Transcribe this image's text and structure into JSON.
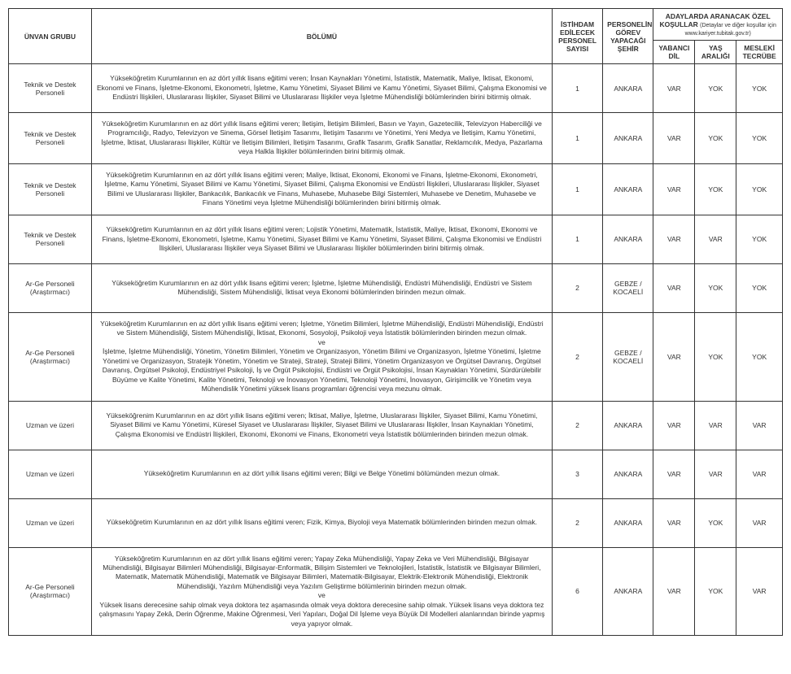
{
  "headers": {
    "unvan": "ÜNVAN GRUBU",
    "bolum": "BÖLÜMÜ",
    "sayi": "İSTİHDAM EDİLECEK PERSONEL SAYISI",
    "sehir": "PERSONELİN GÖREV YAPACAĞI ŞEHİR",
    "kosul_group": "ADAYLARDA ARANACAK ÖZEL KOŞULLAR",
    "kosul_note": "(Detaylar ve diğer koşullar için www.kariyer.tubitak.gov.tr)",
    "dil": "YABANCI DİL",
    "yas": "YAŞ ARALIĞI",
    "tecrube": "MESLEKİ TECRÜBE"
  },
  "rows": [
    {
      "unvan": "Teknik ve Destek Personeli",
      "bolum": "Yükseköğretim Kurumlarının en az dört yıllık lisans eğitimi veren; İnsan Kaynakları Yönetimi, İstatistik, Matematik, Maliye, İktisat, Ekonomi, Ekonomi ve Finans, İşletme-Ekonomi, Ekonometri, İşletme, Kamu Yönetimi, Siyaset Bilimi ve Kamu Yönetimi, Siyaset Bilimi, Çalışma Ekonomisi ve Endüstri İlişkileri, Uluslararası İlişkiler, Siyaset Bilimi ve Uluslararası İlişkiler veya İşletme Mühendisliği bölümlerinden birini bitirmiş olmak.",
      "sayi": "1",
      "sehir": "ANKARA",
      "dil": "VAR",
      "yas": "YOK",
      "tecrube": "YOK"
    },
    {
      "unvan": "Teknik ve Destek Personeli",
      "bolum": "Yükseköğretim Kurumlarının en az dört yıllık lisans eğitimi veren; İletişim, İletişim Bilimleri, Basın ve Yayın, Gazetecilik, Televizyon Haberciliği ve Programcılığı, Radyo, Televizyon ve Sinema, Görsel İletişim Tasarımı, İletişim Tasarımı ve Yönetimi, Yeni Medya ve İletişim, Kamu Yönetimi, İşletme, İktisat, Uluslararası İlişkiler, Kültür ve İletişim Bilimleri, İletişim Tasarımı, Grafik Tasarım, Grafik Sanatlar, Reklamcılık, Medya, Pazarlama veya Halkla İlişkiler bölümlerinden birini bitirmiş olmak.",
      "sayi": "1",
      "sehir": "ANKARA",
      "dil": "VAR",
      "yas": "YOK",
      "tecrube": "YOK"
    },
    {
      "unvan": "Teknik ve Destek Personeli",
      "bolum": "Yükseköğretim Kurumlarının en az dört yıllık lisans eğitimi veren; Maliye, İktisat, Ekonomi, Ekonomi ve Finans, İşletme-Ekonomi, Ekonometri, İşletme, Kamu Yönetimi, Siyaset Bilimi ve Kamu Yönetimi, Siyaset Bilimi, Çalışma Ekonomisi ve Endüstri İlişkileri, Uluslararası İlişkiler, Siyaset Bilimi ve Uluslararası İlişkiler, Bankacılık, Bankacılık ve Finans, Muhasebe, Muhasebe Bilgi Sistemleri, Muhasebe ve Denetim, Muhasebe ve Finans Yönetimi veya İşletme Mühendisliği bölümlerinden birini bitirmiş olmak.",
      "sayi": "1",
      "sehir": "ANKARA",
      "dil": "VAR",
      "yas": "YOK",
      "tecrube": "YOK"
    },
    {
      "unvan": "Teknik ve Destek Personeli",
      "bolum": "Yükseköğretim Kurumlarının en az dört yıllık lisans eğitimi veren; Lojistik Yönetimi, Matematik, İstatistik, Maliye, İktisat, Ekonomi, Ekonomi ve Finans, İşletme-Ekonomi, Ekonometri, İşletme, Kamu Yönetimi, Siyaset Bilimi ve Kamu Yönetimi, Siyaset Bilimi, Çalışma Ekonomisi ve Endüstri İlişkileri, Uluslararası İlişkiler veya Siyaset Bilimi ve Uluslararası İlişkiler bölümlerinden birini bitirmiş olmak.",
      "sayi": "1",
      "sehir": "ANKARA",
      "dil": "VAR",
      "yas": "VAR",
      "tecrube": "YOK"
    },
    {
      "unvan": "Ar-Ge Personeli (Araştırmacı)",
      "bolum": "Yükseköğretim Kurumlarının en az dört yıllık lisans eğitimi veren; İşletme, İşletme Mühendisliği, Endüstri Mühendisliği, Endüstri ve Sistem Mühendisliği, Sistem Mühendisliği, İktisat veya Ekonomi bölümlerinden birinden mezun olmak.",
      "sayi": "2",
      "sehir": "GEBZE / KOCAELİ",
      "dil": "VAR",
      "yas": "YOK",
      "tecrube": "YOK"
    },
    {
      "unvan": "Ar-Ge Personeli (Araştırmacı)",
      "bolum": "Yükseköğretim Kurumlarının en az dört yıllık lisans eğitimi veren; İşletme, Yönetim Bilimleri, İşletme Mühendisliği, Endüstri Mühendisliği, Endüstri ve Sistem Mühendisliği, Sistem Mühendisliği, İktisat, Ekonomi, Sosyoloji, Psikoloji veya İstatistik bölümlerinden birinden mezun olmak.\nve\nİşletme, İşletme Mühendisliği, Yönetim, Yönetim Bilimleri, Yönetim ve Organizasyon, Yönetim Bilimi ve Organizasyon, İşletme Yönetimi, İşletme Yönetimi ve Organizasyon, Stratejik Yönetim, Yönetim ve Strateji, Strateji, Strateji Bilimi, Yönetim Organizasyon ve Örgütsel Davranış, Örgütsel Davranış, Örgütsel Psikoloji, Endüstriyel Psikoloji, İş ve Örgüt Psikolojisi, Endüstri ve Örgüt Psikolojisi, İnsan Kaynakları Yönetimi, Sürdürülebilir Büyüme ve Kalite Yönetimi, Kalite Yönetimi, Teknoloji ve İnovasyon Yönetimi, Teknoloji Yönetimi, İnovasyon, Girişimcilik ve Yönetim veya Mühendislik Yönetimi yüksek lisans programları öğrencisi veya mezunu olmak.",
      "sayi": "2",
      "sehir": "GEBZE / KOCAELİ",
      "dil": "VAR",
      "yas": "YOK",
      "tecrube": "YOK"
    },
    {
      "unvan": "Uzman ve üzeri",
      "bolum": "Yükseköğrenim Kurumlarının en az dört yıllık lisans eğitimi veren; İktisat, Maliye, İşletme, Uluslararası İlişkiler, Siyaset Bilimi, Kamu Yönetimi, Siyaset Bilimi ve Kamu Yönetimi, Küresel Siyaset ve Uluslararası İlişkiler, Siyaset Bilimi ve Uluslararası İlişkiler, İnsan Kaynakları Yönetimi, Çalışma Ekonomisi ve Endüstri İlişkileri, Ekonomi, Ekonomi ve Finans, Ekonometri veya İstatistik bölümlerinden birinden mezun olmak.",
      "sayi": "2",
      "sehir": "ANKARA",
      "dil": "VAR",
      "yas": "VAR",
      "tecrube": "VAR"
    },
    {
      "unvan": "Uzman ve üzeri",
      "bolum": "Yükseköğretim Kurumlarının en az dört yıllık lisans eğitimi veren; Bilgi ve Belge Yönetimi bölümünden mezun olmak.",
      "sayi": "3",
      "sehir": "ANKARA",
      "dil": "VAR",
      "yas": "VAR",
      "tecrube": "VAR"
    },
    {
      "unvan": "Uzman ve üzeri",
      "bolum": "Yükseköğretim Kurumlarının en az dört yıllık lisans eğitimi veren; Fizik, Kimya, Biyoloji veya Matematik bölümlerinden birinden mezun olmak.",
      "sayi": "2",
      "sehir": "ANKARA",
      "dil": "VAR",
      "yas": "YOK",
      "tecrube": "VAR"
    },
    {
      "unvan": "Ar-Ge Personeli (Araştırmacı)",
      "bolum": "Yükseköğretim Kurumlarının en az dört yıllık lisans eğitimi veren; Yapay Zeka Mühendisliği, Yapay Zeka ve Veri Mühendisliği, Bilgisayar Mühendisliği, Bilgisayar Bilimleri Mühendisliği, Bilgisayar-Enformatik, Bilişim Sistemleri ve Teknolojileri, İstatistik, İstatistik ve Bilgisayar Bilimleri, Matematik, Matematik Mühendisliği, Matematik ve Bilgisayar Bilimleri, Matematik-Bilgisayar, Elektrik-Elektronik Mühendisliği, Elektronik Mühendisliği, Yazılım Mühendisliği veya Yazılım Geliştirme bölümlerinin birinden mezun olmak.\nve\nYüksek lisans derecesine sahip olmak veya doktora tez aşamasında olmak veya doktora derecesine sahip olmak. Yüksek lisans veya doktora tez çalışmasını Yapay Zekâ, Derin Öğrenme, Makine Öğrenmesi, Veri Yapıları, Doğal Dil İşleme veya Büyük Dil Modelleri alanlarından birinde yapmış veya yapıyor olmak.",
      "sayi": "6",
      "sehir": "ANKARA",
      "dil": "VAR",
      "yas": "YOK",
      "tecrube": "VAR"
    }
  ]
}
